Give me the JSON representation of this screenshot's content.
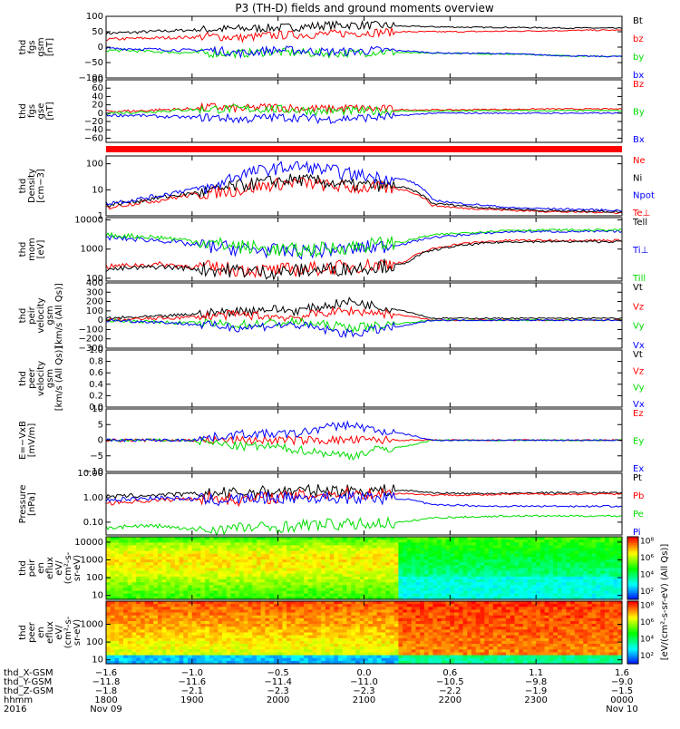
{
  "title": "P3 (TH-D) fields and ground moments overview",
  "colors": {
    "black": "#000000",
    "red": "#ff0000",
    "green": "#00dd00",
    "blue": "#0000ff"
  },
  "chart_data": [
    {
      "type": "line",
      "panel": "fgs_gsm",
      "ylabel": [
        "thd",
        "fgs",
        "gsm",
        "[nT]"
      ],
      "ylim": [
        -100,
        100
      ],
      "yticks": [
        "100",
        "50",
        "0",
        "−50",
        "−100"
      ],
      "ytick_values": [
        100,
        50,
        0,
        -50,
        -100
      ],
      "legend": [
        {
          "label": "Bt",
          "color": "#000000"
        },
        {
          "label": "bz",
          "color": "#ff0000"
        },
        {
          "label": "by",
          "color": "#00dd00"
        },
        {
          "label": "bx",
          "color": "#0000ff"
        }
      ],
      "series": [
        {
          "name": "Bt",
          "color": "#000000",
          "values": [
            45,
            48,
            52,
            55,
            58,
            60,
            62,
            65,
            70,
            72,
            70,
            68,
            66,
            65,
            64,
            64,
            63,
            62,
            62,
            61
          ]
        },
        {
          "name": "bz",
          "color": "#ff0000",
          "values": [
            25,
            28,
            30,
            32,
            35,
            30,
            38,
            40,
            42,
            45,
            48,
            50,
            50,
            50,
            51,
            52,
            53,
            54,
            55,
            55
          ]
        },
        {
          "name": "by",
          "color": "#00dd00",
          "values": [
            -10,
            -12,
            -15,
            -18,
            -20,
            -20,
            -15,
            -18,
            -20,
            -20,
            -15,
            -18,
            -20,
            -20,
            -22,
            -22,
            -25,
            -28,
            -30,
            -30
          ]
        },
        {
          "name": "bx",
          "color": "#0000ff",
          "values": [
            -5,
            -5,
            -8,
            -10,
            -10,
            -20,
            -10,
            -10,
            -15,
            -15,
            -10,
            -12,
            -18,
            -20,
            -20,
            -22,
            -25,
            -28,
            -30,
            -30
          ]
        }
      ]
    },
    {
      "type": "line",
      "panel": "fgs_gse",
      "ylabel": [
        "thd",
        "fgs",
        "gse",
        "[nT]"
      ],
      "ylim": [
        -70,
        80
      ],
      "yticks": [
        "80",
        "60",
        "40",
        "20",
        "0",
        "−20",
        "−40",
        "−60"
      ],
      "ytick_values": [
        80,
        60,
        40,
        20,
        0,
        -20,
        -40,
        -60
      ],
      "legend": [
        {
          "label": "Bz",
          "color": "#ff0000"
        },
        {
          "label": "By",
          "color": "#00dd00"
        },
        {
          "label": "Bx",
          "color": "#0000ff"
        }
      ],
      "series": [
        {
          "name": "Bz",
          "color": "#ff0000",
          "values": [
            5,
            5,
            8,
            10,
            15,
            10,
            15,
            12,
            10,
            12,
            10,
            8,
            8,
            8,
            9,
            9,
            10,
            10,
            10,
            10
          ]
        },
        {
          "name": "By",
          "color": "#00dd00",
          "values": [
            0,
            2,
            5,
            8,
            10,
            10,
            10,
            8,
            5,
            5,
            5,
            5,
            5,
            5,
            6,
            6,
            6,
            6,
            6,
            6
          ]
        },
        {
          "name": "Bx",
          "color": "#0000ff",
          "values": [
            -5,
            -5,
            -8,
            -10,
            -10,
            -15,
            -10,
            -10,
            -15,
            -12,
            -10,
            -5,
            0,
            0,
            0,
            0,
            0,
            0,
            0,
            0
          ]
        }
      ]
    },
    {
      "type": "line",
      "panel": "density",
      "ylabel": [
        "thd",
        "Density",
        "[cm−3]"
      ],
      "yscale": "log",
      "ylim": [
        1,
        200
      ],
      "yticks": [
        "100",
        "10",
        "1"
      ],
      "ytick_values": [
        100,
        10,
        1
      ],
      "legend": [
        {
          "label": "Ne",
          "color": "#ff0000"
        },
        {
          "label": "Ni",
          "color": "#000000"
        },
        {
          "label": "Npot",
          "color": "#0000ff"
        },
        {
          "label": "Te⊥",
          "color": "#ff0000"
        }
      ],
      "series": [
        {
          "name": "Ne",
          "color": "#ff0000",
          "values": [
            2,
            3,
            4,
            6,
            8,
            10,
            15,
            20,
            15,
            12,
            12,
            10,
            2.5,
            2,
            1.8,
            1.6,
            1.5,
            1.4,
            1.4,
            1.3
          ]
        },
        {
          "name": "Ni",
          "color": "#000000",
          "values": [
            2.5,
            3.5,
            5,
            7,
            9,
            15,
            20,
            25,
            20,
            15,
            15,
            12,
            3,
            2.5,
            2,
            1.8,
            1.6,
            1.5,
            1.5,
            1.4
          ]
        },
        {
          "name": "Npot",
          "color": "#0000ff",
          "values": [
            3,
            4,
            6,
            10,
            12,
            40,
            60,
            80,
            60,
            40,
            30,
            25,
            4,
            3,
            2.5,
            2,
            1.9,
            1.8,
            1.7,
            1.6
          ]
        }
      ]
    },
    {
      "type": "line",
      "panel": "mom_temp",
      "ylabel": [
        "thd",
        "mom",
        "[eV]"
      ],
      "yscale": "log",
      "ylim": [
        80,
        12000
      ],
      "yticks": [
        "10000",
        "1000",
        "100"
      ],
      "ytick_values": [
        10000,
        1000,
        100
      ],
      "legend": [
        {
          "label": "Tell",
          "color": "#000000"
        },
        {
          "label": "Ti⊥",
          "color": "#0000ff"
        },
        {
          "label": "Till",
          "color": "#00dd00"
        }
      ],
      "series": [
        {
          "name": "Te⊥",
          "color": "#ff0000",
          "values": [
            250,
            280,
            300,
            260,
            220,
            200,
            180,
            200,
            220,
            250,
            300,
            350,
            1000,
            1500,
            1800,
            2000,
            2000,
            2000,
            2000,
            2000
          ]
        },
        {
          "name": "Tell",
          "color": "#000000",
          "values": [
            200,
            220,
            250,
            220,
            200,
            180,
            160,
            180,
            200,
            220,
            260,
            300,
            900,
            1300,
            1600,
            1800,
            1800,
            1800,
            1800,
            1800
          ]
        },
        {
          "name": "Ti⊥",
          "color": "#0000ff",
          "values": [
            2500,
            2200,
            2000,
            1500,
            1200,
            1000,
            900,
            800,
            900,
            1000,
            1200,
            1500,
            2500,
            3000,
            3500,
            4000,
            4000,
            4000,
            4000,
            4000
          ]
        },
        {
          "name": "Till",
          "color": "#00dd00",
          "values": [
            3000,
            2800,
            2500,
            2000,
            1500,
            1200,
            1000,
            900,
            1000,
            1200,
            1500,
            1800,
            3000,
            3500,
            4000,
            4500,
            4500,
            4500,
            4500,
            4500
          ]
        }
      ]
    },
    {
      "type": "line",
      "panel": "peir_velocity",
      "ylabel": [
        "thd",
        "peir",
        "velocity",
        "gsm",
        "[km/s (All Qs)]"
      ],
      "ylim": [
        -300,
        400
      ],
      "yticks": [
        "400",
        "300",
        "200",
        "100",
        "0",
        "−100",
        "−200",
        "−300"
      ],
      "ytick_values": [
        400,
        300,
        200,
        100,
        0,
        -100,
        -200,
        -300
      ],
      "legend": [
        {
          "label": "Vt",
          "color": "#000000"
        },
        {
          "label": "Vz",
          "color": "#ff0000"
        },
        {
          "label": "Vy",
          "color": "#00dd00"
        },
        {
          "label": "Vx",
          "color": "#0000ff"
        }
      ],
      "series": [
        {
          "name": "Vt",
          "color": "#000000",
          "values": [
            20,
            30,
            40,
            60,
            80,
            100,
            120,
            100,
            150,
            200,
            150,
            100,
            20,
            20,
            20,
            20,
            20,
            20,
            20,
            20
          ]
        },
        {
          "name": "Vz",
          "color": "#ff0000",
          "values": [
            0,
            10,
            20,
            30,
            50,
            60,
            40,
            30,
            80,
            100,
            80,
            50,
            0,
            0,
            0,
            0,
            0,
            0,
            0,
            0
          ]
        },
        {
          "name": "Vy",
          "color": "#00dd00",
          "values": [
            0,
            -10,
            -20,
            -30,
            -40,
            -50,
            -30,
            -20,
            -50,
            -80,
            -60,
            -30,
            0,
            0,
            0,
            0,
            0,
            0,
            0,
            0
          ]
        },
        {
          "name": "Vx",
          "color": "#0000ff",
          "values": [
            0,
            -10,
            -20,
            -40,
            -60,
            -80,
            -60,
            -50,
            -100,
            -150,
            -100,
            -60,
            0,
            0,
            0,
            0,
            0,
            0,
            0,
            0
          ]
        }
      ]
    },
    {
      "type": "line",
      "panel": "peer_velocity",
      "ylabel": [
        "thd",
        "peer",
        "velocity",
        "gsm",
        "[km/s (All Qs)]"
      ],
      "ylim": [
        0,
        1
      ],
      "yticks": [
        "1.0",
        "0.8",
        "0.6",
        "0.4",
        "0.2",
        "0.0"
      ],
      "ytick_values": [
        1,
        0.8,
        0.6,
        0.4,
        0.2,
        0
      ],
      "legend": [
        {
          "label": "Vt",
          "color": "#000000"
        },
        {
          "label": "Vz",
          "color": "#ff0000"
        },
        {
          "label": "Vy",
          "color": "#00dd00"
        },
        {
          "label": "Vx",
          "color": "#0000ff"
        }
      ],
      "series": []
    },
    {
      "type": "line",
      "panel": "efield",
      "ylabel": [
        "E=−VxB",
        "[mV/m]"
      ],
      "ylim": [
        -10,
        10
      ],
      "yticks": [
        "10",
        "5",
        "0",
        "−5",
        "−10"
      ],
      "ytick_values": [
        10,
        5,
        0,
        -5,
        -10
      ],
      "legend": [
        {
          "label": "Ez",
          "color": "#ff0000"
        },
        {
          "label": "Ey",
          "color": "#00dd00"
        },
        {
          "label": "Ex",
          "color": "#0000ff"
        }
      ],
      "series": [
        {
          "name": "Ez",
          "color": "#ff0000",
          "values": [
            0,
            0,
            0,
            0,
            0,
            0,
            0,
            0,
            0,
            0,
            0,
            0,
            0,
            0,
            0,
            0,
            0,
            0,
            0,
            0
          ]
        },
        {
          "name": "Ey",
          "color": "#00dd00",
          "values": [
            0,
            0,
            0,
            0,
            -1,
            -2,
            -2,
            -3,
            -4,
            -5,
            -3,
            -2,
            0,
            0,
            0,
            0,
            0,
            0,
            0,
            0
          ]
        },
        {
          "name": "Ex",
          "color": "#0000ff",
          "values": [
            0,
            0,
            0,
            0,
            1,
            2,
            2,
            2,
            4,
            5,
            3,
            2,
            0,
            0,
            0,
            0,
            0,
            0,
            0,
            0
          ]
        }
      ]
    },
    {
      "type": "line",
      "panel": "pressure",
      "ylabel": [
        "Pressure",
        "[nPa]"
      ],
      "yscale": "log",
      "ylim": [
        0.03,
        10
      ],
      "yticks": [
        "10.00",
        "1.00",
        "0.10"
      ],
      "ytick_values": [
        10,
        1,
        0.1
      ],
      "legend": [
        {
          "label": "Pt",
          "color": "#000000"
        },
        {
          "label": "Pb",
          "color": "#ff0000"
        },
        {
          "label": "Pe",
          "color": "#00dd00"
        },
        {
          "label": "Pi",
          "color": "#0000ff"
        }
      ],
      "series": [
        {
          "name": "Pt",
          "color": "#000000",
          "values": [
            1.1,
            1.2,
            1.3,
            1.4,
            1.5,
            1.6,
            1.8,
            1.9,
            2.0,
            2.0,
            2.0,
            2.0,
            1.6,
            1.5,
            1.5,
            1.5,
            1.6,
            1.6,
            1.6,
            1.6
          ]
        },
        {
          "name": "Pb",
          "color": "#ff0000",
          "values": [
            0.6,
            0.7,
            0.8,
            0.9,
            1.0,
            0.8,
            1.0,
            1.2,
            1.4,
            1.5,
            1.5,
            1.5,
            1.3,
            1.3,
            1.3,
            1.4,
            1.4,
            1.4,
            1.4,
            1.4
          ]
        },
        {
          "name": "Pe",
          "color": "#00dd00",
          "values": [
            0.06,
            0.07,
            0.07,
            0.05,
            0.05,
            0.06,
            0.06,
            0.07,
            0.08,
            0.08,
            0.09,
            0.1,
            0.15,
            0.16,
            0.17,
            0.18,
            0.18,
            0.18,
            0.18,
            0.18
          ]
        },
        {
          "name": "Pi",
          "color": "#0000ff",
          "values": [
            0.8,
            0.9,
            1.0,
            0.9,
            0.8,
            0.9,
            1.0,
            1.0,
            1.0,
            1.0,
            1.0,
            0.9,
            0.5,
            0.5,
            0.45,
            0.45,
            0.45,
            0.45,
            0.45,
            0.45
          ]
        }
      ]
    },
    {
      "type": "heatmap",
      "panel": "peir_eflux",
      "ylabel": [
        "thd",
        "peir",
        "en",
        "eflux",
        "eV/",
        "(cm²-s-",
        "sr-eV)"
      ],
      "yscale": "log",
      "ylim": [
        6,
        20000
      ],
      "yticks": [
        "10000",
        "1000",
        "100",
        "10"
      ],
      "ytick_values": [
        10000,
        1000,
        100,
        10
      ],
      "colorbar": {
        "labels": [
          "10⁸",
          "10⁶",
          "10⁴",
          "10²"
        ],
        "label_powers": [
          8,
          6,
          4,
          2
        ],
        "range_powers": [
          1,
          8.5
        ]
      }
    },
    {
      "type": "heatmap",
      "panel": "peer_eflux",
      "ylabel": [
        "thd",
        "peer",
        "en",
        "eflux",
        "eV/",
        "(cm²-s-",
        "sr-eV)"
      ],
      "yscale": "log",
      "ylim": [
        6,
        20000
      ],
      "yticks": [
        "1000",
        "100",
        "10"
      ],
      "ytick_values": [
        1000,
        100,
        10
      ],
      "colorbar": {
        "labels": [
          "10⁸",
          "10⁶",
          "10⁴",
          "10²"
        ],
        "label_powers": [
          8,
          6,
          4,
          2
        ],
        "range_powers": [
          1,
          8.5
        ]
      }
    }
  ],
  "colorbar_title": "[eV/(cm²-s-sr-eV) (All Qs)]",
  "xaxis": {
    "row_labels": [
      "thd_X-GSM",
      "thd_Y-GSM",
      "thd_Z-GSM",
      "hhmm",
      "2016"
    ],
    "ticks": [
      {
        "frac": 0.0,
        "x": "−1.6",
        "y": "−11.8",
        "z": "−1.8",
        "t": "1800",
        "d": "Nov 09"
      },
      {
        "frac": 0.1667,
        "x": "−1.0",
        "y": "−11.6",
        "z": "−2.1",
        "t": "1900",
        "d": ""
      },
      {
        "frac": 0.3333,
        "x": "−0.5",
        "y": "−11.4",
        "z": "−2.3",
        "t": "2000",
        "d": ""
      },
      {
        "frac": 0.5,
        "x": "0.0",
        "y": "−11.0",
        "z": "−2.3",
        "t": "2100",
        "d": ""
      },
      {
        "frac": 0.6667,
        "x": "0.6",
        "y": "−10.5",
        "z": "−2.2",
        "t": "2200",
        "d": ""
      },
      {
        "frac": 0.8333,
        "x": "1.1",
        "y": "−9.8",
        "z": "−1.9",
        "t": "2300",
        "d": ""
      },
      {
        "frac": 1.0,
        "x": "1.6",
        "y": "−9.0",
        "z": "−1.5",
        "t": "0000",
        "d": "Nov 10"
      }
    ]
  }
}
